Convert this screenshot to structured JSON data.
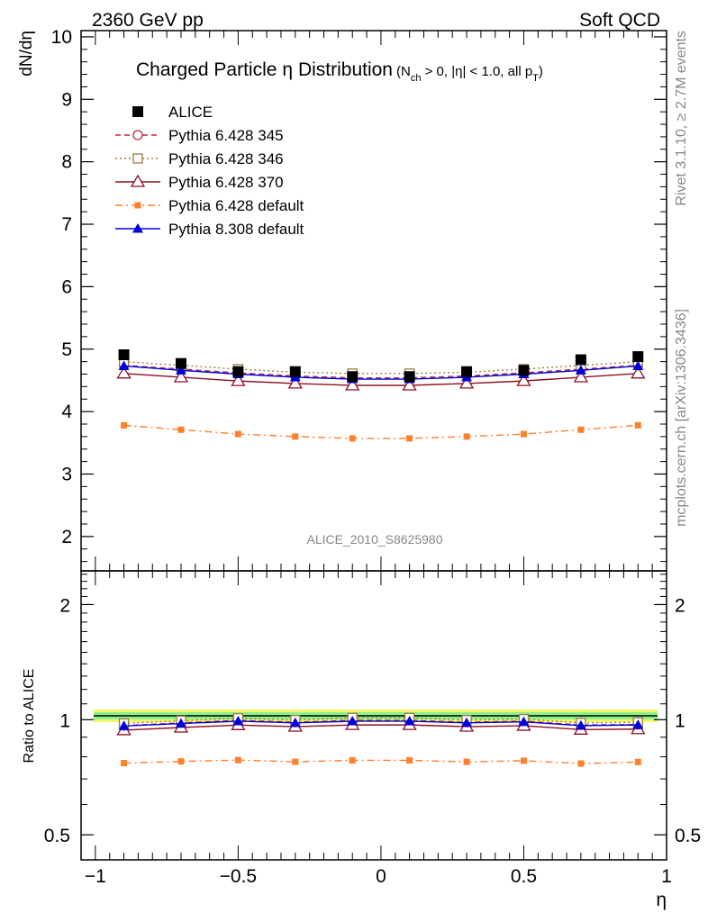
{
  "header": {
    "left": "2360 GeV pp",
    "right": "Soft QCD"
  },
  "title": {
    "main": "Charged Particle",
    "eta": "η",
    "rest": " Distribution",
    "cuts_pre": "(N",
    "cuts_sub": "ch",
    "cuts_mid": " > 0, |η| < 1.0, all p",
    "cuts_sub2": "T",
    "cuts_post": ")"
  },
  "side": {
    "rivet": "Rivet 3.1.10, ≥ 2.7M events",
    "mcplots": "mcplots.cern.ch [arXiv:1306.3436]"
  },
  "analysis_id": "ALICE_2010_S8625980",
  "chart_data": [
    {
      "type": "line",
      "panel": "main",
      "ylabel": "dN/dη",
      "xlabel": "η",
      "xlim": [
        -1.05,
        1.0
      ],
      "ylim": [
        1.45,
        10.1
      ],
      "yticks": [
        2,
        3,
        4,
        5,
        6,
        7,
        8,
        9,
        10
      ],
      "x": [
        -0.9,
        -0.7,
        -0.5,
        -0.3,
        -0.1,
        0.1,
        0.3,
        0.5,
        0.7,
        0.9
      ],
      "series": [
        {
          "name": "ALICE",
          "values": [
            4.91,
            4.77,
            4.64,
            4.64,
            4.56,
            4.56,
            4.64,
            4.66,
            4.83,
            4.88
          ],
          "color": "#000000",
          "marker": "square-filled",
          "line": "none"
        },
        {
          "name": "Pythia 6.428 345",
          "values": [
            4.74,
            4.68,
            4.62,
            4.57,
            4.54,
            4.54,
            4.57,
            4.62,
            4.68,
            4.74
          ],
          "color": "#b5283c",
          "marker": "circle-open",
          "line": "dashed"
        },
        {
          "name": "Pythia 6.428 346",
          "values": [
            4.8,
            4.74,
            4.68,
            4.63,
            4.61,
            4.61,
            4.63,
            4.68,
            4.74,
            4.8
          ],
          "color": "#9c7c40",
          "marker": "square-open",
          "line": "dotted"
        },
        {
          "name": "Pythia 6.428 370",
          "values": [
            4.61,
            4.55,
            4.49,
            4.45,
            4.42,
            4.42,
            4.45,
            4.49,
            4.55,
            4.61
          ],
          "color": "#8b1020",
          "marker": "triangle-open",
          "line": "solid"
        },
        {
          "name": "Pythia 6.428 default",
          "values": [
            3.78,
            3.71,
            3.64,
            3.6,
            3.57,
            3.57,
            3.6,
            3.64,
            3.71,
            3.78
          ],
          "color": "#ff7f2a",
          "marker": "square-small",
          "line": "dashdot"
        },
        {
          "name": "Pythia 8.308 default",
          "values": [
            4.73,
            4.66,
            4.6,
            4.55,
            4.52,
            4.52,
            4.55,
            4.6,
            4.66,
            4.73
          ],
          "color": "#0000dd",
          "marker": "triangle-filled",
          "line": "solid"
        }
      ]
    },
    {
      "type": "line",
      "panel": "ratio",
      "ylabel": "Ratio to ALICE",
      "xlabel": "η",
      "xlim": [
        -1.05,
        1.0
      ],
      "ylim": [
        0.43,
        2.45
      ],
      "scale": "log",
      "yticks": [
        0.5,
        1,
        2
      ],
      "xticks": [
        -1,
        -0.5,
        0,
        0.5,
        1
      ],
      "xticklabels": [
        "−1",
        "−0.5",
        "0",
        "0.5",
        "1"
      ],
      "x": [
        -0.9,
        -0.7,
        -0.5,
        -0.3,
        -0.1,
        0.1,
        0.3,
        0.5,
        0.7,
        0.9
      ],
      "series": [
        {
          "name": "Pythia 6.428 345",
          "values": [
            0.965,
            0.981,
            0.996,
            0.985,
            0.996,
            0.996,
            0.985,
            0.991,
            0.969,
            0.971
          ]
        },
        {
          "name": "Pythia 6.428 346",
          "values": [
            0.978,
            0.994,
            1.009,
            0.998,
            1.011,
            1.011,
            0.998,
            1.004,
            0.981,
            0.984
          ]
        },
        {
          "name": "Pythia 6.428 370",
          "values": [
            0.939,
            0.954,
            0.968,
            0.959,
            0.969,
            0.969,
            0.959,
            0.964,
            0.942,
            0.945
          ]
        },
        {
          "name": "Pythia 6.428 default",
          "values": [
            0.77,
            0.778,
            0.784,
            0.776,
            0.783,
            0.783,
            0.776,
            0.781,
            0.768,
            0.775
          ]
        },
        {
          "name": "Pythia 8.308 default",
          "values": [
            0.963,
            0.977,
            0.991,
            0.981,
            0.991,
            0.991,
            0.981,
            0.987,
            0.965,
            0.969
          ]
        }
      ]
    }
  ]
}
